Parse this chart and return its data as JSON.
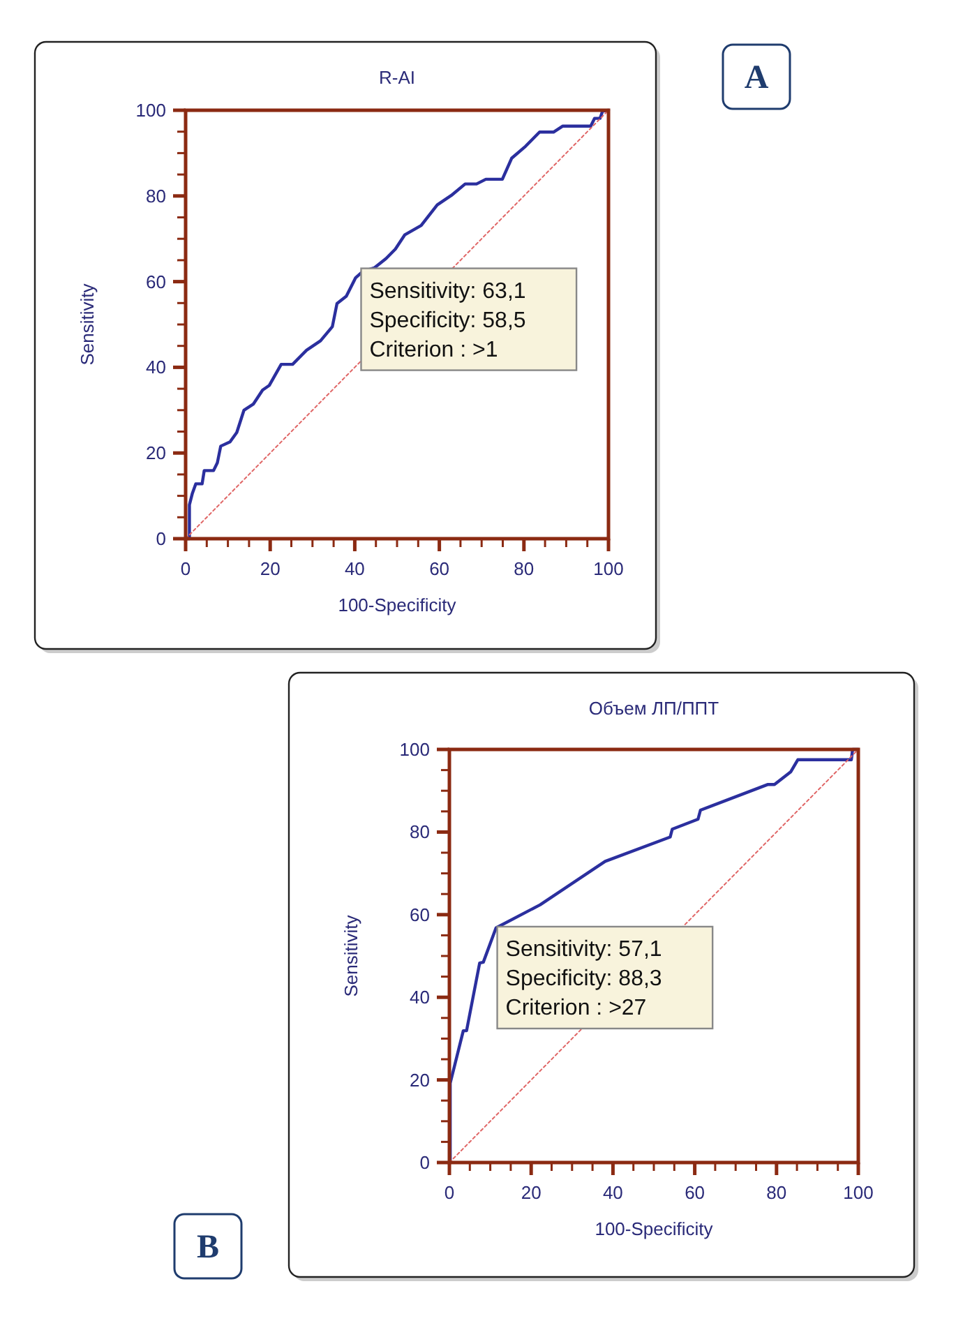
{
  "chart_data": [
    {
      "type": "line",
      "title": "R-AI",
      "xlabel": "100-Specificity",
      "ylabel": "Sensitivity",
      "xlim": [
        0,
        100
      ],
      "ylim": [
        0,
        100
      ],
      "xticks": [
        0,
        {
          "value": 5,
          "label": null
        },
        {
          "value": 10,
          "label": null
        },
        {
          "value": 15,
          "label": null
        },
        20,
        {
          "value": 25,
          "label": null
        },
        {
          "value": 30,
          "label": null
        },
        {
          "value": 35,
          "label": null
        },
        40,
        {
          "value": 45,
          "label": null
        },
        {
          "value": 50,
          "label": null
        },
        {
          "value": 55,
          "label": null
        },
        60,
        {
          "value": 65,
          "label": null
        },
        {
          "value": 70,
          "label": null
        },
        {
          "value": 75,
          "label": null
        },
        80,
        {
          "value": 85,
          "label": null
        },
        {
          "value": 90,
          "label": null
        },
        {
          "value": 95,
          "label": null
        },
        100
      ],
      "yticks": [
        0,
        {
          "value": 5,
          "label": null
        },
        {
          "value": 10,
          "label": null
        },
        {
          "value": 15,
          "label": null
        },
        20,
        {
          "value": 25,
          "label": null
        },
        {
          "value": 30,
          "label": null
        },
        {
          "value": 35,
          "label": null
        },
        40,
        {
          "value": 45,
          "label": null
        },
        {
          "value": 50,
          "label": null
        },
        {
          "value": 55,
          "label": null
        },
        60,
        {
          "value": 65,
          "label": null
        },
        {
          "value": 70,
          "label": null
        },
        {
          "value": 75,
          "label": null
        },
        80,
        {
          "value": 85,
          "label": null
        },
        {
          "value": 90,
          "label": null
        },
        {
          "value": 95,
          "label": null
        },
        100
      ],
      "grid": false,
      "series": [
        {
          "color": "#2b2f9e",
          "line_style": "solid",
          "x": [
            0,
            0.9,
            0.9,
            1.6,
            2.4,
            3.9,
            4.4,
            6.6,
            7.5,
            8.3,
            10.5,
            12.1,
            13.8,
            16,
            18.2,
            19.8,
            22.6,
            25.3,
            28.6,
            31.9,
            34.7,
            35.8,
            38,
            40.2,
            41.9,
            44.6,
            47.4,
            49.6,
            51.8,
            55.7,
            59.5,
            62.8,
            66.1,
            68.8,
            71,
            74.9,
            77.1,
            80.4,
            83.7,
            87,
            89.2,
            95.8,
            96.7,
            98,
            98.6,
            100
          ],
          "values": [
            0,
            0,
            7.9,
            10.6,
            12.8,
            12.8,
            15.9,
            15.9,
            17.7,
            21.6,
            22.6,
            24.8,
            30,
            31.4,
            34.7,
            35.8,
            40.7,
            40.7,
            44,
            46.2,
            49.5,
            54.9,
            56.6,
            60.9,
            62.4,
            63.2,
            65.4,
            67.6,
            70.9,
            73.1,
            77.9,
            80.1,
            82.8,
            82.8,
            83.9,
            83.9,
            88.8,
            91.6,
            94.9,
            94.9,
            96.3,
            96.3,
            98.1,
            98.1,
            99.8,
            100
          ]
        },
        {
          "color": "#e06666",
          "line_style": "dotted",
          "x": [
            0,
            100
          ],
          "values": [
            0,
            100
          ]
        }
      ],
      "annotations": [
        "A",
        {
          "text": "Sensitivity: 63,1\nSpecificity: 58,5\nCriterion : >1",
          "x": 41.5,
          "y": 63.1
        }
      ]
    },
    {
      "type": "line",
      "title": "Объем ЛП/ППТ",
      "xlabel": "100-Specificity",
      "ylabel": "Sensitivity",
      "xlim": [
        0,
        100
      ],
      "ylim": [
        0,
        100
      ],
      "xticks": [
        0,
        {
          "value": 5,
          "label": null
        },
        {
          "value": 10,
          "label": null
        },
        {
          "value": 15,
          "label": null
        },
        20,
        {
          "value": 25,
          "label": null
        },
        {
          "value": 30,
          "label": null
        },
        {
          "value": 35,
          "label": null
        },
        40,
        {
          "value": 45,
          "label": null
        },
        {
          "value": 50,
          "label": null
        },
        {
          "value": 55,
          "label": null
        },
        60,
        {
          "value": 65,
          "label": null
        },
        {
          "value": 70,
          "label": null
        },
        {
          "value": 75,
          "label": null
        },
        80,
        {
          "value": 85,
          "label": null
        },
        {
          "value": 90,
          "label": null
        },
        {
          "value": 95,
          "label": null
        },
        100
      ],
      "yticks": [
        0,
        {
          "value": 5,
          "label": null
        },
        {
          "value": 10,
          "label": null
        },
        {
          "value": 15,
          "label": null
        },
        20,
        {
          "value": 25,
          "label": null
        },
        {
          "value": 30,
          "label": null
        },
        {
          "value": 35,
          "label": null
        },
        40,
        {
          "value": 45,
          "label": null
        },
        {
          "value": 50,
          "label": null
        },
        {
          "value": 55,
          "label": null
        },
        60,
        {
          "value": 65,
          "label": null
        },
        {
          "value": 70,
          "label": null
        },
        {
          "value": 75,
          "label": null
        },
        80,
        {
          "value": 85,
          "label": null
        },
        {
          "value": 90,
          "label": null
        },
        {
          "value": 95,
          "label": null
        },
        100
      ],
      "grid": false,
      "series": [
        {
          "color": "#2b2f9e",
          "line_style": "solid",
          "x": [
            0,
            0.2,
            0.2,
            3.4,
            4.2,
            7.4,
            8.3,
            11.4,
            22.2,
            38.1,
            54,
            54.5,
            60.8,
            61.4,
            77.8,
            79.5,
            83.5,
            85.2,
            98.3,
            98.6,
            100
          ],
          "values": [
            0,
            0,
            19.2,
            31.9,
            31.9,
            48.3,
            48.5,
            56.8,
            62.4,
            72.9,
            78.8,
            80.7,
            83.1,
            85.3,
            91.5,
            91.5,
            94.6,
            97.5,
            97.5,
            100,
            100
          ]
        },
        {
          "color": "#e06666",
          "line_style": "dotted",
          "x": [
            0,
            100
          ],
          "values": [
            0,
            100
          ]
        }
      ],
      "annotations": [
        "B",
        {
          "text": "Sensitivity: 57,1\nSpecificity: 88,3\nCriterion : >27",
          "x": 11.7,
          "y": 57.1
        }
      ]
    }
  ]
}
